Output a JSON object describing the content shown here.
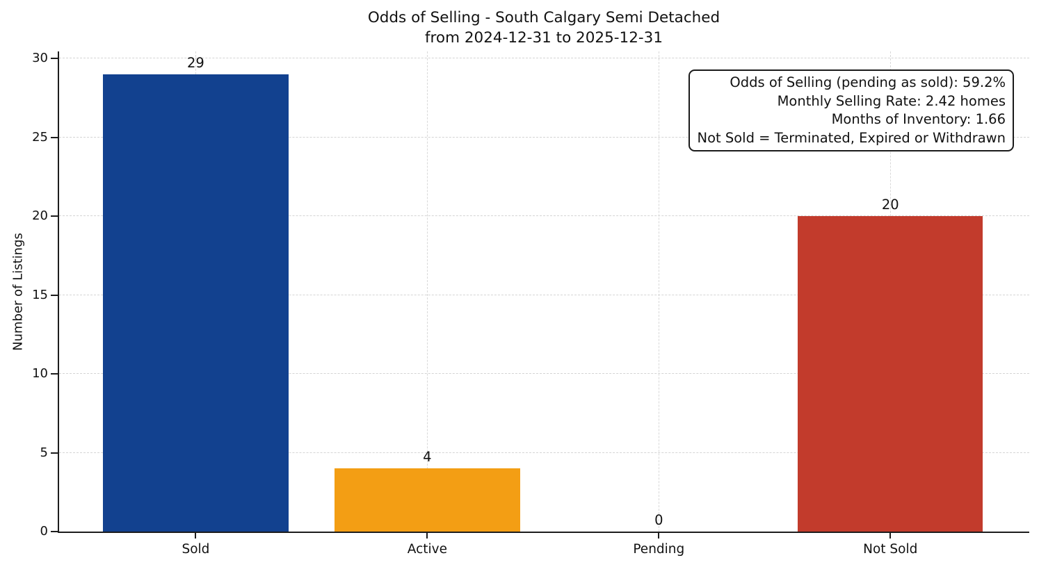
{
  "chart_data": {
    "type": "bar",
    "title": "Odds of Selling - South Calgary Semi Detached",
    "subtitle": "from 2024-12-31 to 2025-12-31",
    "categories": [
      "Sold",
      "Active",
      "Pending",
      "Not Sold"
    ],
    "values": [
      29,
      4,
      0,
      20
    ],
    "bar_colors": [
      "#12418f",
      "#f39e14",
      "#999999",
      "#c23b2c"
    ],
    "value_labels": [
      "29",
      "4",
      "0",
      "20"
    ],
    "xlabel": "",
    "ylabel": "Number of Listings",
    "yticks": [
      0,
      5,
      10,
      15,
      20,
      25,
      30
    ],
    "ylim": [
      0,
      30.45
    ],
    "xlim": [
      -0.59,
      3.6
    ],
    "bar_width": 0.8,
    "grid": "dashed",
    "legend": "none",
    "annotation": {
      "position": "top-right",
      "lines": [
        "Odds of Selling (pending as sold): 59.2%",
        "Monthly Selling Rate: 2.42 homes",
        "Months of Inventory: 1.66",
        "Not Sold = Terminated, Expired or Withdrawn"
      ]
    },
    "colors": {
      "sold_bar": "#12418f",
      "active_bar": "#f39e14",
      "not_sold_bar": "#c23b2c",
      "grid": "#d4d4d4",
      "axis": "#1c1c1c",
      "text": "#111111",
      "background": "#ffffff"
    }
  }
}
